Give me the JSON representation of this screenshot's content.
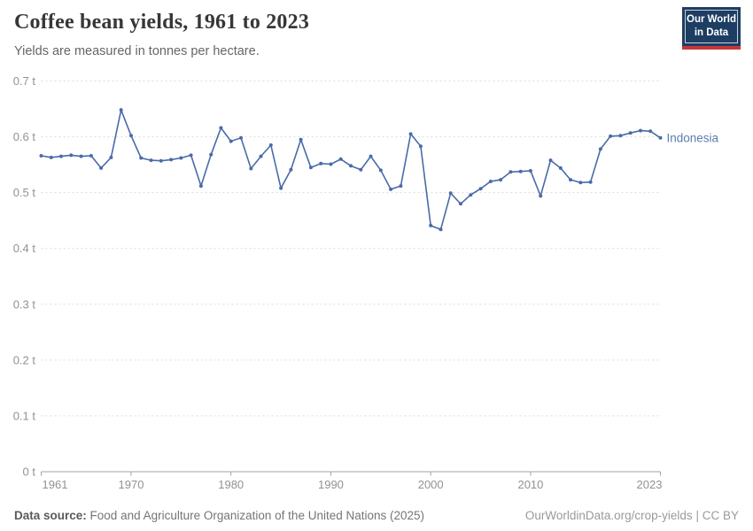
{
  "header": {
    "title": "Coffee bean yields, 1961 to 2023",
    "subtitle": "Yields are measured in tonnes per hectare."
  },
  "logo": {
    "line1": "Our World",
    "line2": "in Data",
    "bg_color": "#1d3d63",
    "bar_color": "#c5373d"
  },
  "chart_data": {
    "type": "line",
    "title": "Coffee bean yields, 1961 to 2023",
    "xlabel": "",
    "ylabel": "tonnes per hectare",
    "xlim": [
      1961,
      2023
    ],
    "ylim": [
      0,
      0.7
    ],
    "grid": "horizontal-dashed",
    "legend_position": "end-of-line-label",
    "x_ticks": [
      1961,
      1970,
      1980,
      1990,
      2000,
      2010,
      2023
    ],
    "x_tick_labels": [
      "1961",
      "1970",
      "1980",
      "1990",
      "2000",
      "2010",
      "2023"
    ],
    "y_ticks": [
      0,
      0.1,
      0.2,
      0.3,
      0.4,
      0.5,
      0.6,
      0.7
    ],
    "y_tick_labels": [
      "0 t",
      "0.1 t",
      "0.2 t",
      "0.3 t",
      "0.4 t",
      "0.5 t",
      "0.6 t",
      "0.7 t"
    ],
    "series": [
      {
        "name": "Indonesia",
        "color": "#4a6ba8",
        "label_color": "#5b7eae",
        "x": [
          1961,
          1962,
          1963,
          1964,
          1965,
          1966,
          1967,
          1968,
          1969,
          1970,
          1971,
          1972,
          1973,
          1974,
          1975,
          1976,
          1977,
          1978,
          1979,
          1980,
          1981,
          1982,
          1983,
          1984,
          1985,
          1986,
          1987,
          1988,
          1989,
          1990,
          1991,
          1992,
          1993,
          1994,
          1995,
          1996,
          1997,
          1998,
          1999,
          2000,
          2001,
          2002,
          2003,
          2004,
          2005,
          2006,
          2007,
          2008,
          2009,
          2010,
          2011,
          2012,
          2013,
          2014,
          2015,
          2016,
          2017,
          2018,
          2019,
          2020,
          2021,
          2022,
          2023
        ],
        "values": [
          0.566,
          0.563,
          0.565,
          0.567,
          0.565,
          0.566,
          0.544,
          0.563,
          0.648,
          0.602,
          0.562,
          0.558,
          0.557,
          0.559,
          0.562,
          0.567,
          0.512,
          0.568,
          0.616,
          0.592,
          0.598,
          0.543,
          0.565,
          0.585,
          0.508,
          0.541,
          0.595,
          0.545,
          0.552,
          0.551,
          0.56,
          0.548,
          0.541,
          0.565,
          0.54,
          0.506,
          0.512,
          0.605,
          0.583,
          0.441,
          0.434,
          0.499,
          0.48,
          0.496,
          0.507,
          0.52,
          0.523,
          0.537,
          0.538,
          0.539,
          0.494,
          0.558,
          0.544,
          0.523,
          0.518,
          0.519,
          0.578,
          0.601,
          0.602,
          0.607,
          0.611,
          0.61,
          0.598
        ]
      }
    ]
  },
  "footer": {
    "source_label": "Data source:",
    "source_text": "Food and Agriculture Organization of the United Nations (2025)",
    "url_text": "OurWorldinData.org/crop-yields",
    "divider": "|",
    "license": "CC BY"
  }
}
